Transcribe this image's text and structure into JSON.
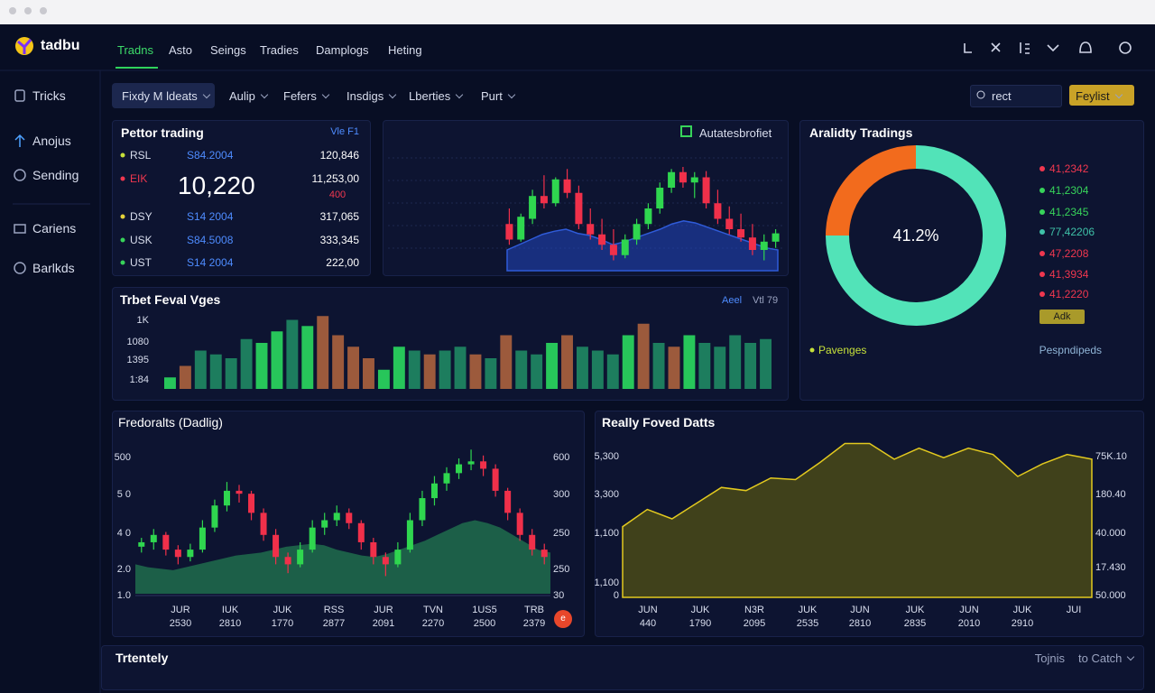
{
  "brand": "tadbu",
  "nav": {
    "tabs": [
      "Tradns",
      "Asto",
      "Seings",
      "Tradies",
      "Damplogs",
      "Heting"
    ],
    "active": 0
  },
  "sidebar": [
    "Tricks",
    "Anojus",
    "Sending",
    "Cariens",
    "Barlkds"
  ],
  "toolbar": {
    "filters": [
      "Fixdy M ldeats",
      "Aulip",
      "Fefers",
      "Insdigs",
      "Lberties",
      "Purt"
    ],
    "search": "rect",
    "button": "Feylist"
  },
  "watchlist": {
    "title": "Pettor trading",
    "link": "Vle F1",
    "big_value": "10,220",
    "rows": [
      {
        "symbol": "RSL",
        "code": "S84.2004",
        "value": "120,846",
        "color": "#c6e03a"
      },
      {
        "symbol": "EIK",
        "value": "11,253,00",
        "sub": "400",
        "color": "#f0374f"
      },
      {
        "symbol": "DSY",
        "code": "S14 2004",
        "value": "317,065",
        "color": "#e5d23a"
      },
      {
        "symbol": "USK",
        "code": "S84.5008",
        "value": "333,345",
        "color": "#37d35a"
      },
      {
        "symbol": "UST",
        "code": "S14 2004",
        "value": "222,00",
        "color": "#37d35a"
      }
    ]
  },
  "price_chart": {
    "title": "Autatesbrofiet",
    "candles": [
      [
        45,
        60,
        25,
        30
      ],
      [
        30,
        55,
        28,
        52
      ],
      [
        50,
        78,
        45,
        72
      ],
      [
        72,
        92,
        60,
        65
      ],
      [
        65,
        90,
        62,
        88
      ],
      [
        88,
        98,
        70,
        75
      ],
      [
        75,
        82,
        40,
        45
      ],
      [
        45,
        60,
        30,
        35
      ],
      [
        35,
        50,
        20,
        25
      ],
      [
        25,
        40,
        10,
        15
      ],
      [
        15,
        35,
        12,
        30
      ],
      [
        30,
        50,
        25,
        45
      ],
      [
        45,
        65,
        40,
        60
      ],
      [
        60,
        85,
        55,
        80
      ],
      [
        80,
        98,
        75,
        95
      ],
      [
        95,
        100,
        80,
        85
      ],
      [
        85,
        95,
        70,
        90
      ],
      [
        90,
        96,
        60,
        65
      ],
      [
        65,
        78,
        45,
        50
      ],
      [
        50,
        62,
        35,
        40
      ],
      [
        40,
        55,
        28,
        32
      ],
      [
        32,
        45,
        15,
        20
      ],
      [
        20,
        35,
        10,
        28
      ],
      [
        28,
        40,
        22,
        36
      ]
    ],
    "volume": [
      20,
      25,
      30,
      35,
      38,
      40,
      36,
      34,
      30,
      25,
      28,
      32,
      36,
      40,
      45,
      48,
      46,
      42,
      38,
      34,
      30,
      26,
      22,
      20
    ]
  },
  "bar_chart": {
    "title": "Trbet Feval Vges",
    "legend": [
      "Aeel",
      "Vtl 79"
    ],
    "y_labels": [
      "1K",
      "1080",
      "1395",
      "1:84"
    ],
    "values": [
      15,
      30,
      50,
      45,
      40,
      65,
      60,
      75,
      90,
      82,
      95,
      70,
      55,
      40,
      25,
      55,
      50,
      45,
      50,
      55,
      45,
      40,
      70,
      50,
      45,
      60,
      70,
      55,
      50,
      45,
      70,
      85,
      60,
      55,
      70,
      60,
      55,
      70,
      60,
      65
    ],
    "colors": [
      "#27c65a",
      "#9c5a3c",
      "#1d7d5e",
      "#1d7d5e",
      "#1d7d5e",
      "#1d7d5e",
      "#27c65a",
      "#27c65a",
      "#1d7d5e",
      "#27c65a",
      "#9c5a3c",
      "#9c5a3c",
      "#9c5a3c",
      "#9c5a3c",
      "#27c65a",
      "#27c65a",
      "#1d7d5e",
      "#9c5a3c",
      "#1d7d5e",
      "#1d7d5e",
      "#9c5a3c",
      "#1d7d5e",
      "#9c5a3c",
      "#1d7d5e",
      "#1d7d5e",
      "#27c65a",
      "#9c5a3c",
      "#1d7d5e",
      "#1d7d5e",
      "#1d7d5e",
      "#27c65a",
      "#9c5a3c",
      "#1d7d5e",
      "#9c5a3c",
      "#27c65a",
      "#1d7d5e",
      "#1d7d5e",
      "#1d7d5e",
      "#1d7d5e",
      "#1d7d5e"
    ]
  },
  "donut": {
    "title": "Aralidty Tradings",
    "center": "41.2%",
    "values": [
      75,
      25
    ],
    "colors": [
      "#52e3b8",
      "#f26b1d"
    ],
    "legend": [
      {
        "label": "41,2342",
        "color": "#f0374f"
      },
      {
        "label": "41,2304",
        "color": "#37d35a"
      },
      {
        "label": "41,2345",
        "color": "#37d35a"
      },
      {
        "label": "77,42206",
        "color": "#3fc1a8"
      },
      {
        "label": "47,2208",
        "color": "#f0374f"
      },
      {
        "label": "41,3934",
        "color": "#f0374f"
      },
      {
        "label": "41,2220",
        "color": "#f0374f"
      }
    ],
    "badge": "Adk",
    "footer": [
      "Pavenges",
      "Pespndipeds"
    ]
  },
  "candle_chart": {
    "title": "Fredoralts (Dadlig)",
    "y_left": [
      "500",
      "5 0",
      "4 0",
      "2.0",
      "1.0"
    ],
    "y_right": [
      "600",
      "300",
      "250",
      "250",
      "30"
    ],
    "x_labels": [
      [
        "JUR",
        "2530"
      ],
      [
        "IUK",
        "2810"
      ],
      [
        "JUK",
        "1770"
      ],
      [
        "RSS",
        "2877"
      ],
      [
        "JUR",
        "2091"
      ],
      [
        "TVN",
        "2270"
      ],
      [
        "1US5",
        "2500"
      ],
      [
        "TRB",
        "2379"
      ]
    ],
    "badge": "e",
    "candles": [
      [
        32,
        38,
        28,
        35
      ],
      [
        35,
        44,
        30,
        40
      ],
      [
        40,
        42,
        26,
        30
      ],
      [
        30,
        33,
        20,
        25
      ],
      [
        25,
        34,
        22,
        30
      ],
      [
        30,
        50,
        28,
        45
      ],
      [
        45,
        64,
        42,
        60
      ],
      [
        60,
        76,
        56,
        70
      ],
      [
        70,
        74,
        62,
        68
      ],
      [
        68,
        70,
        50,
        55
      ],
      [
        55,
        58,
        36,
        40
      ],
      [
        40,
        44,
        20,
        25
      ],
      [
        25,
        28,
        14,
        20
      ],
      [
        20,
        35,
        18,
        30
      ],
      [
        30,
        50,
        28,
        45
      ],
      [
        45,
        55,
        40,
        50
      ],
      [
        50,
        60,
        46,
        55
      ],
      [
        55,
        58,
        44,
        48
      ],
      [
        48,
        50,
        30,
        35
      ],
      [
        35,
        38,
        20,
        25
      ],
      [
        25,
        28,
        12,
        20
      ],
      [
        20,
        35,
        18,
        30
      ],
      [
        30,
        55,
        28,
        50
      ],
      [
        50,
        70,
        46,
        65
      ],
      [
        65,
        80,
        60,
        75
      ],
      [
        75,
        86,
        70,
        82
      ],
      [
        82,
        92,
        78,
        88
      ],
      [
        88,
        98,
        84,
        90
      ],
      [
        90,
        94,
        80,
        85
      ],
      [
        85,
        88,
        66,
        70
      ],
      [
        70,
        72,
        50,
        55
      ],
      [
        55,
        58,
        36,
        40
      ],
      [
        40,
        44,
        26,
        30
      ],
      [
        30,
        34,
        20,
        25
      ]
    ],
    "area": [
      20,
      18,
      17,
      16,
      18,
      20,
      22,
      24,
      26,
      27,
      28,
      30,
      32,
      33,
      34,
      33,
      30,
      28,
      26,
      25,
      27,
      30,
      33,
      36,
      40,
      44,
      48,
      50,
      48,
      45,
      40,
      35,
      30,
      28
    ]
  },
  "area_chart": {
    "title": "Really Foved Datts",
    "y_left": [
      "5,300",
      "3,300",
      "1,100",
      "1,100",
      "0"
    ],
    "y_right": [
      "75K.10",
      "180.40",
      "40.000",
      "17.430",
      "50.000"
    ],
    "x_labels": [
      [
        "JUN",
        "440"
      ],
      [
        "JUK",
        "1790"
      ],
      [
        "N3R",
        "2095"
      ],
      [
        "JUK",
        "2535"
      ],
      [
        "JUN",
        "2810"
      ],
      [
        "JUK",
        "2835"
      ],
      [
        "JUN",
        "2010"
      ],
      [
        "JUK",
        "2910"
      ],
      [
        "JUI"
      ]
    ],
    "values": [
      45,
      56,
      50,
      60,
      70,
      68,
      76,
      75,
      86,
      98,
      98,
      88,
      95,
      89,
      95,
      91,
      77,
      85,
      91,
      88
    ]
  },
  "footer": {
    "title": "Trtentely",
    "links": [
      "Tojnis",
      "to Catch"
    ]
  }
}
